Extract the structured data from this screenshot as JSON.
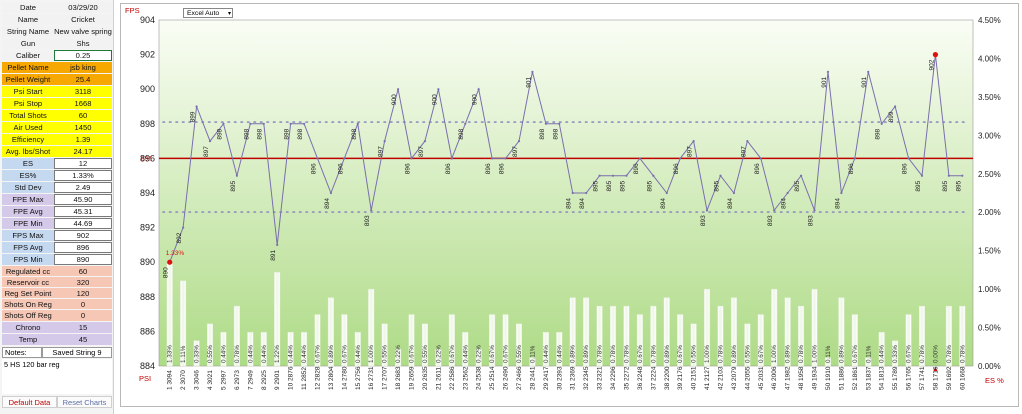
{
  "info": {
    "date_label": "Date",
    "date": "03/29/20",
    "name_label": "Name",
    "name": "Cricket",
    "string_label": "String Name",
    "string": "New valve spring",
    "gun_label": "Gun",
    "gun": "Shs",
    "caliber_label": "Caliber",
    "caliber": "0.25"
  },
  "pellet": {
    "name_label": "Pellet Name",
    "name": "jsb king",
    "weight_label": "Pellet Weight",
    "weight": "25.4"
  },
  "shot": {
    "psi_start_label": "Psi Start",
    "psi_start": "3118",
    "psi_stop_label": "Psi Stop",
    "psi_stop": "1668",
    "total_label": "Total Shots",
    "total": "60",
    "air_label": "Air Used",
    "air": "1450",
    "eff_label": "Efficiency",
    "eff": "1.39",
    "avg_lbs_label": "Avg. lbs/Shot",
    "avg_lbs": "24.17"
  },
  "stats": {
    "es_label": "ES",
    "es": "12",
    "es_pct_label": "ES%",
    "es_pct": "1.33%",
    "sd_label": "Std Dev",
    "sd": "2.49",
    "fpe_max_label": "FPE Max",
    "fpe_max": "45.90",
    "fpe_avg_label": "FPE Avg",
    "fpe_avg": "45.31",
    "fpe_min_label": "FPE Min",
    "fpe_min": "44.69",
    "fps_max_label": "FPS Max",
    "fps_max": "902",
    "fps_avg_label": "FPS Avg",
    "fps_avg": "896",
    "fps_min_label": "FPS Min",
    "fps_min": "890"
  },
  "reg": {
    "reg_cc_label": "Regulated cc",
    "reg_cc": "60",
    "res_cc_label": "Reservoir cc",
    "res_cc": "320",
    "set_label": "Reg Set Point",
    "set": "120",
    "on_label": "Shots On Reg",
    "on": "0",
    "off_label": "Shots Off Reg",
    "off": "0"
  },
  "chrono": {
    "chrono_label": "Chrono",
    "chrono": "15",
    "temp_label": "Temp",
    "temp": "45"
  },
  "notes": {
    "label": "Notes:",
    "save_label": "Saved String 9",
    "text": "5 HS 120 bar reg"
  },
  "buttons": {
    "default": "Default Data",
    "reset": "Reset Charts"
  },
  "chart_ui": {
    "dropdown": "Excel Auto",
    "fps_label": "FPS",
    "psi_label": "PSI",
    "es_label": "ES %"
  },
  "colors": {
    "fps_line": "#7a6fae",
    "avg_line": "#c00000",
    "sd_band": "#8f8fbf",
    "bar_green": "#82c43e",
    "marker": "#e01010",
    "plot_bg_top": "#fafdf5",
    "plot_bg_bottom": "#aedb86"
  },
  "chart_data": {
    "type": "line",
    "x_shots": [
      1,
      2,
      3,
      4,
      5,
      6,
      7,
      8,
      9,
      10,
      11,
      12,
      13,
      14,
      15,
      16,
      17,
      18,
      19,
      20,
      21,
      22,
      23,
      24,
      25,
      26,
      27,
      28,
      29,
      30,
      31,
      32,
      33,
      34,
      35,
      36,
      37,
      38,
      39,
      40,
      41,
      42,
      43,
      44,
      45,
      46,
      47,
      48,
      49,
      50,
      51,
      52,
      53,
      54,
      55,
      56,
      57,
      58,
      59,
      60
    ],
    "x_psi": [
      "3094",
      "3070",
      "3046",
      "3021",
      "2997",
      "2973",
      "2949",
      "2925",
      "2901",
      "2876",
      "2852",
      "2828",
      "2804",
      "2780",
      "2756",
      "2731",
      "2707",
      "2683",
      "2659",
      "2635",
      "2611",
      "2586",
      "2562",
      "2538",
      "2514",
      "2490",
      "2466",
      "2441",
      "2417",
      "2393",
      "2369",
      "2345",
      "2321",
      "2296",
      "2272",
      "2248",
      "2224",
      "2200",
      "2176",
      "2151",
      "2127",
      "2103",
      "2079",
      "2055",
      "2031",
      "2006",
      "1982",
      "1958",
      "1934",
      "1910",
      "1886",
      "1861",
      "1837",
      "1813",
      "1789",
      "1765",
      "1741",
      "1716",
      "1692",
      "1668"
    ],
    "series": [
      {
        "name": "FPS",
        "axis": "left",
        "values": [
          890,
          892,
          899,
          897,
          898,
          895,
          898,
          898,
          891,
          898,
          898,
          896,
          894,
          896,
          898,
          893,
          897,
          900,
          896,
          897,
          900,
          896,
          898,
          900,
          896,
          896,
          897,
          901,
          898,
          898,
          894,
          894,
          895,
          895,
          895,
          896,
          895,
          894,
          896,
          897,
          893,
          895,
          894,
          897,
          896,
          893,
          894,
          895,
          893,
          901,
          894,
          896,
          901,
          898,
          899,
          896,
          895,
          902,
          895,
          895
        ],
        "point_labels": [
          "890",
          "892",
          "899",
          "897",
          "898",
          "895",
          "898",
          "898",
          "891",
          "898",
          "898",
          "896",
          "894",
          "896",
          "898",
          "893",
          "897",
          "900",
          "896",
          "897",
          "900",
          "896",
          "898",
          "900",
          "896",
          "896",
          "897",
          "901",
          "898",
          "898",
          "894",
          "894",
          "895",
          "895",
          "895",
          "896",
          "895",
          "894",
          "896",
          "897",
          "893",
          "895",
          "894",
          "897",
          "896",
          "893",
          "894",
          "895",
          "893",
          "901",
          "894",
          "896",
          "901",
          "898",
          "899",
          "896",
          "895",
          "902",
          "895",
          "895"
        ]
      },
      {
        "name": "ES %",
        "axis": "right",
        "values": [
          1.33,
          1.11,
          0.33,
          0.55,
          0.44,
          0.78,
          0.44,
          0.44,
          1.22,
          0.44,
          0.44,
          0.67,
          0.89,
          0.67,
          0.44,
          1.0,
          0.55,
          0.22,
          0.67,
          0.55,
          0.22,
          0.67,
          0.44,
          0.22,
          0.67,
          0.67,
          0.55,
          0.11,
          0.44,
          0.44,
          0.89,
          0.89,
          0.78,
          0.78,
          0.78,
          0.67,
          0.78,
          0.89,
          0.67,
          0.55,
          1.0,
          0.78,
          0.89,
          0.55,
          0.67,
          1.0,
          0.89,
          0.78,
          1.0,
          0.11,
          0.89,
          0.67,
          0.11,
          0.44,
          0.33,
          0.67,
          0.78,
          0.0,
          0.78,
          0.78
        ],
        "labels": [
          "1.33%",
          "1.11%",
          "0.33%",
          "0.55%",
          "0.44%",
          "0.78%",
          "0.44%",
          "0.44%",
          "1.22%",
          "0.44%",
          "0.44%",
          "0.67%",
          "0.89%",
          "0.67%",
          "0.44%",
          "1.00%",
          "0.55%",
          "0.22%",
          "0.67%",
          "0.55%",
          "0.22%",
          "0.67%",
          "0.44%",
          "0.22%",
          "0.67%",
          "0.67%",
          "0.55%",
          "0.11%",
          "0.44%",
          "0.44%",
          "0.89%",
          "0.89%",
          "0.78%",
          "0.78%",
          "0.78%",
          "0.67%",
          "0.78%",
          "0.89%",
          "0.67%",
          "0.55%",
          "1.00%",
          "0.78%",
          "0.89%",
          "0.55%",
          "0.67%",
          "1.00%",
          "0.89%",
          "0.78%",
          "1.00%",
          "0.11%",
          "0.89%",
          "0.67%",
          "0.11%",
          "0.44%",
          "0.33%",
          "0.67%",
          "0.78%",
          "0.00%",
          "0.78%",
          "0.78%"
        ]
      }
    ],
    "avg_value": 896,
    "avg_label": "896",
    "sd_upper": 898.1,
    "sd_lower": 892.9,
    "min_marker_label": "1.33%",
    "max_marker_label": "902",
    "ylim": [
      884,
      904
    ],
    "yticks": [
      884,
      886,
      888,
      890,
      892,
      894,
      896,
      898,
      900,
      902,
      904
    ],
    "y2lim": [
      0,
      4.5
    ],
    "y2ticks": [
      "0.00%",
      "0.50%",
      "1.00%",
      "1.50%",
      "2.00%",
      "2.50%",
      "3.00%",
      "3.50%",
      "4.00%",
      "4.50%"
    ],
    "grid": false
  }
}
